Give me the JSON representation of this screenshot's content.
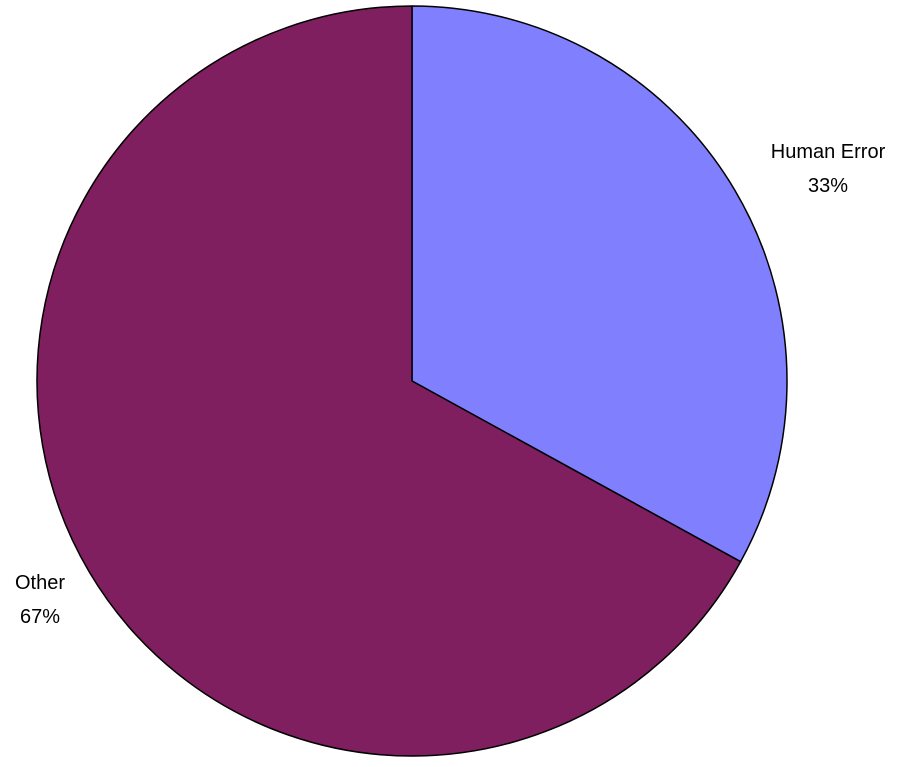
{
  "chart_data": {
    "type": "pie",
    "slices": [
      {
        "label": "Human Error",
        "value": 33,
        "value_label": "33%",
        "color": "#8080ff"
      },
      {
        "label": "Other",
        "value": 67,
        "value_label": "67%",
        "color": "#7f1f5f"
      }
    ],
    "start_angle": "top",
    "direction": "clockwise",
    "slice_outline_color": "#000000",
    "legend": "none"
  }
}
